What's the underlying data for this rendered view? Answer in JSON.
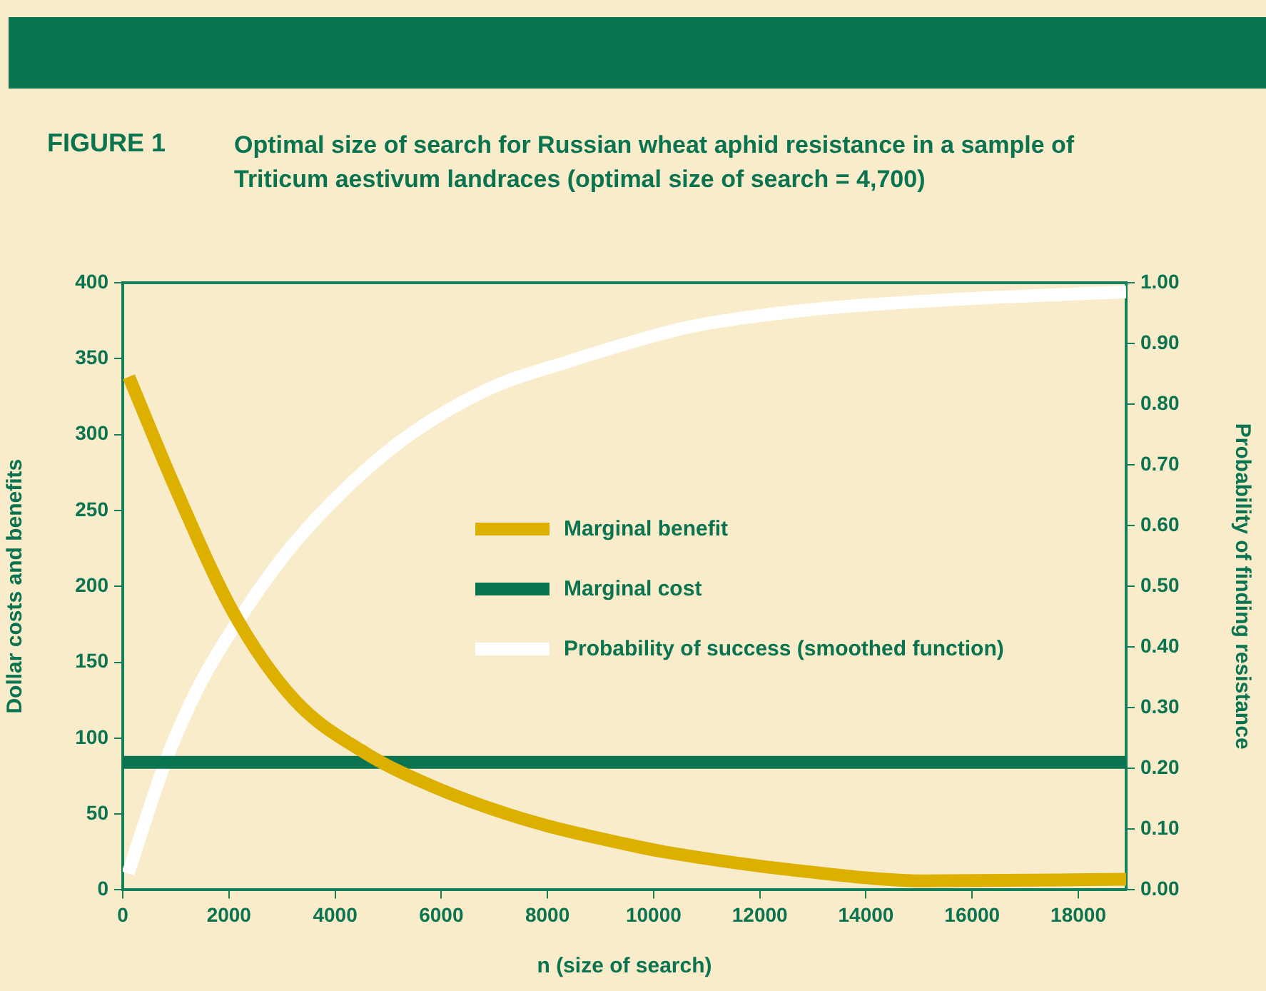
{
  "chart_data": {
    "type": "line",
    "title": "Optimal size of search for Russian wheat aphid resistance in a sample of Triticum aestivum landraces (optimal size of search = 4,700)",
    "annotations": [
      "FIGURE 1"
    ],
    "xlabel": "n (size of search)",
    "ylabel": "Dollar costs and benefits",
    "y2label": "Probability of finding resistance",
    "xlim": [
      0,
      18900
    ],
    "xticks": [
      0,
      2000,
      4000,
      6000,
      8000,
      10000,
      12000,
      14000,
      16000,
      18000
    ],
    "ylim": [
      0,
      400
    ],
    "yticks": [
      0,
      50,
      100,
      150,
      200,
      250,
      300,
      350,
      400
    ],
    "y2lim": [
      0,
      1
    ],
    "y2ticks": [
      {
        "value": 0,
        "label": "0.00"
      },
      {
        "value": 0.1,
        "label": "0.10"
      },
      {
        "value": 0.2,
        "label": "0.20"
      },
      {
        "value": 0.3,
        "label": "0.30"
      },
      {
        "value": 0.4,
        "label": "0.40"
      },
      {
        "value": 0.5,
        "label": "0.50"
      },
      {
        "value": 0.6,
        "label": "0.60"
      },
      {
        "value": 0.7,
        "label": "0.70"
      },
      {
        "value": 0.8,
        "label": "0.80"
      },
      {
        "value": 0.9,
        "label": "0.90"
      },
      {
        "value": 1,
        "label": "1.00"
      }
    ],
    "grid": false,
    "legend": "center",
    "marker": "none",
    "line_style": "solid",
    "series": [
      {
        "name": "Marginal benefit",
        "color": "#ddb000",
        "x": [
          115,
          1000,
          2080,
          3240,
          4580,
          5920,
          7710,
          9500,
          10210,
          12890,
          15120,
          18900
        ],
        "values": [
          338,
          264,
          183,
          125,
          90,
          67,
          45,
          30,
          25,
          12,
          6,
          7
        ]
      },
      {
        "name": "Marginal cost",
        "color": "#0a7350",
        "x": [
          0,
          18900
        ],
        "values": [
          84,
          84
        ]
      },
      {
        "name": "Probability of success (smoothed function)",
        "color": "#ffffff",
        "axis": "y2",
        "x": [
          100,
          830,
          1450,
          2170,
          3240,
          5030,
          6820,
          8420,
          9500,
          10660,
          12890,
          15570,
          18900
        ],
        "values": [
          0.027,
          0.217,
          0.338,
          0.443,
          0.572,
          0.725,
          0.822,
          0.871,
          0.9,
          0.927,
          0.955,
          0.972,
          0.985
        ]
      }
    ]
  }
}
